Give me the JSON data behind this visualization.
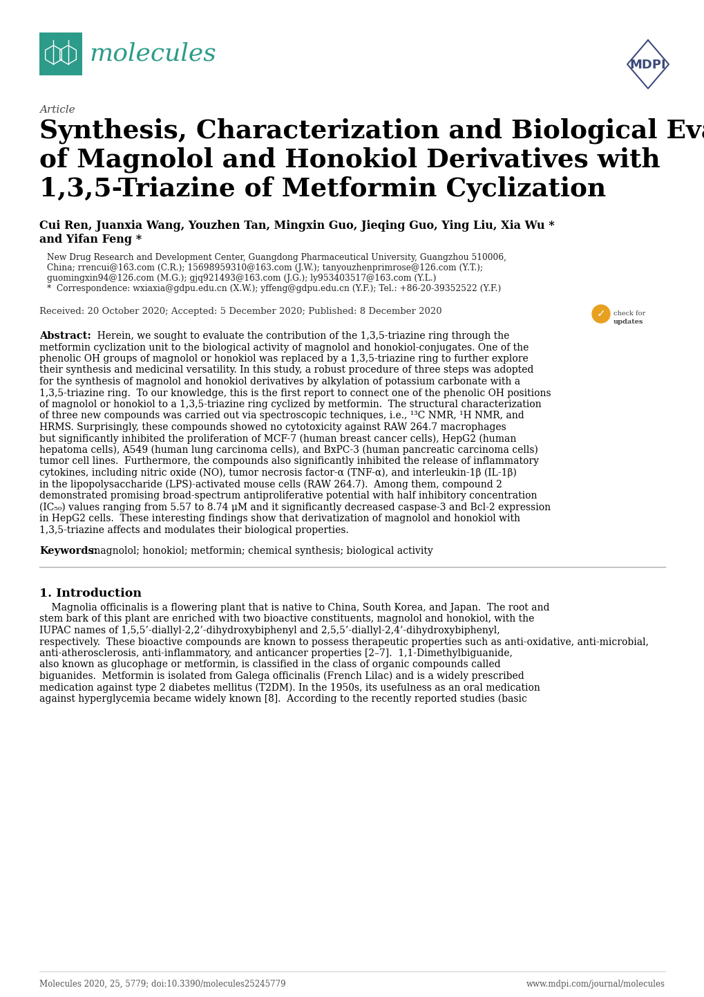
{
  "bg_color": "#ffffff",
  "title_article": "Article",
  "title_main_line1": "Synthesis, Characterization and Biological Evaluation",
  "title_main_line2": "of Magnolol and Honokiol Derivatives with",
  "title_main_line3": "1,3,5-Triazine of Metformin Cyclization",
  "authors": "Cui Ren, Juanxia Wang, Youzhen Tan, Mingxin Guo, Jieqing Guo, Ying Liu, Xia Wu *",
  "authors2": "and Yifan Feng *",
  "affiliation1": "New Drug Research and Development Center, Guangdong Pharmaceutical University, Guangzhou 510006,",
  "affiliation2": "China; rrencui@163.com (C.R.); 15698959310@163.com (J.W.); tanyouzhenprimrose@126.com (Y.T.);",
  "affiliation3": "guomingxin94@126.com (M.G.); gjq921493@163.com (J.G.); ly953403517@163.com (Y.L.)",
  "affiliation4": "*  Correspondence: wxiaxia@gdpu.edu.cn (X.W.); yffeng@gdpu.edu.cn (Y.F.); Tel.: +86-20-39352522 (Y.F.)",
  "dates": "Received: 20 October 2020; Accepted: 5 December 2020; Published: 8 December 2020",
  "abstract_label": "Abstract:",
  "keywords_label": "Keywords:",
  "keywords_text": "magnolol; honokiol; metformin; chemical synthesis; biological activity",
  "section1_title": "1. Introduction",
  "footer_left": "Molecules 2020, 25, 5779; doi:10.3390/molecules25245779",
  "footer_right": "www.mdpi.com/journal/molecules",
  "molecules_color": "#2d9b8a",
  "mdpi_color": "#3d4b7a",
  "text_color": "#000000",
  "gray_color": "#444444",
  "light_gray": "#888888"
}
